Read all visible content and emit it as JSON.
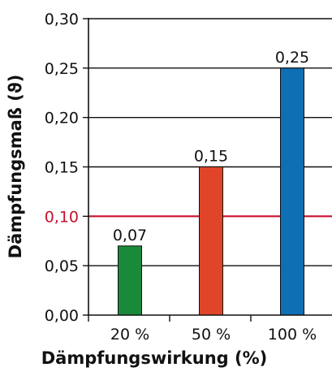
{
  "chart_data": {
    "type": "bar",
    "title": "",
    "xlabel": "Dämpfungswirkung (%)",
    "ylabel": "Dämpfungsmaß (ϑ)",
    "categories": [
      "20 %",
      "50 %",
      "100 %"
    ],
    "values": [
      0.07,
      0.15,
      0.25
    ],
    "value_labels": [
      "0,07",
      "0,15",
      "0,25"
    ],
    "bar_colors": [
      "#1a8a3a",
      "#e0452a",
      "#0f6fb5"
    ],
    "ylim": [
      0,
      0.3
    ],
    "yticks": [
      0,
      0.05,
      0.1,
      0.15,
      0.2,
      0.25,
      0.3
    ],
    "ytick_labels": [
      "0,00",
      "0,05",
      "0,10",
      "0,15",
      "0,20",
      "0,25",
      "0,30"
    ],
    "grid": "horizontal",
    "reference_line": {
      "value": 0.1,
      "color": "#c8102e"
    },
    "legend": "none"
  }
}
